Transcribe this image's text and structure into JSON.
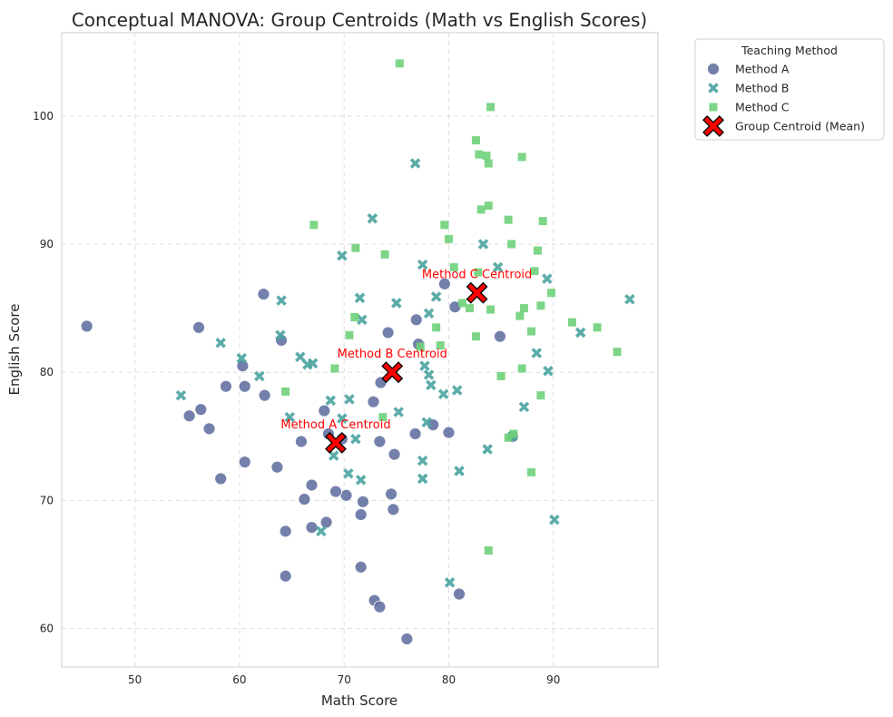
{
  "chart_data": {
    "type": "scatter",
    "title": "Conceptual MANOVA: Group Centroids (Math vs English Scores)",
    "xlabel": "Math Score",
    "ylabel": "English Score",
    "xlim": [
      43,
      100
    ],
    "ylim": [
      57,
      106.5
    ],
    "x_ticks": [
      50,
      60,
      70,
      80,
      90
    ],
    "y_ticks": [
      60,
      70,
      80,
      90,
      100
    ],
    "grid": true,
    "legend": {
      "title": "Teaching Method",
      "placement": "outside-top-right",
      "entries": [
        "Method A",
        "Method B",
        "Method C",
        "Group Centroid (Mean)"
      ]
    },
    "series": [
      {
        "name": "Method A",
        "marker": "circle",
        "color": "#5a6a9c",
        "points": [
          [
            45.4,
            83.6
          ],
          [
            56.1,
            83.5
          ],
          [
            62.3,
            86.1
          ],
          [
            64.0,
            82.5
          ],
          [
            60.3,
            80.5
          ],
          [
            58.7,
            78.9
          ],
          [
            60.5,
            78.9
          ],
          [
            62.4,
            78.2
          ],
          [
            56.3,
            77.1
          ],
          [
            55.2,
            76.6
          ],
          [
            57.1,
            75.6
          ],
          [
            58.2,
            71.7
          ],
          [
            60.5,
            73.0
          ],
          [
            63.6,
            72.6
          ],
          [
            65.9,
            74.6
          ],
          [
            68.1,
            77.0
          ],
          [
            68.5,
            75.2
          ],
          [
            69.8,
            74.8
          ],
          [
            73.5,
            79.2
          ],
          [
            74.2,
            83.1
          ],
          [
            72.8,
            77.7
          ],
          [
            73.4,
            74.6
          ],
          [
            74.8,
            73.6
          ],
          [
            76.8,
            75.2
          ],
          [
            77.1,
            82.2
          ],
          [
            76.9,
            84.1
          ],
          [
            79.6,
            86.9
          ],
          [
            80.6,
            85.1
          ],
          [
            78.5,
            75.9
          ],
          [
            80.0,
            75.3
          ],
          [
            84.9,
            82.8
          ],
          [
            86.1,
            75.0
          ],
          [
            66.9,
            71.2
          ],
          [
            70.2,
            70.4
          ],
          [
            69.2,
            70.7
          ],
          [
            71.8,
            69.9
          ],
          [
            74.5,
            70.5
          ],
          [
            74.7,
            69.3
          ],
          [
            71.6,
            68.9
          ],
          [
            68.3,
            68.3
          ],
          [
            66.2,
            70.1
          ],
          [
            66.9,
            67.9
          ],
          [
            64.4,
            67.6
          ],
          [
            64.4,
            64.1
          ],
          [
            71.6,
            64.8
          ],
          [
            72.9,
            62.2
          ],
          [
            73.4,
            61.7
          ],
          [
            81.0,
            62.7
          ],
          [
            76.0,
            59.2
          ]
        ]
      },
      {
        "name": "Method B",
        "marker": "x",
        "color": "#4aa3a0",
        "points": [
          [
            76.8,
            96.3
          ],
          [
            72.7,
            92.0
          ],
          [
            69.8,
            89.1
          ],
          [
            77.5,
            88.4
          ],
          [
            83.3,
            90.0
          ],
          [
            84.7,
            88.2
          ],
          [
            89.4,
            87.3
          ],
          [
            97.3,
            85.7
          ],
          [
            64.0,
            85.6
          ],
          [
            71.5,
            85.8
          ],
          [
            75.0,
            85.4
          ],
          [
            78.8,
            85.9
          ],
          [
            78.1,
            84.6
          ],
          [
            71.7,
            84.1
          ],
          [
            63.9,
            82.9
          ],
          [
            58.2,
            82.3
          ],
          [
            60.2,
            81.1
          ],
          [
            65.8,
            81.2
          ],
          [
            66.5,
            80.6
          ],
          [
            67.0,
            80.7
          ],
          [
            61.9,
            79.7
          ],
          [
            54.4,
            78.2
          ],
          [
            68.7,
            77.8
          ],
          [
            70.5,
            77.9
          ],
          [
            77.7,
            80.5
          ],
          [
            78.1,
            79.8
          ],
          [
            78.3,
            79.0
          ],
          [
            79.5,
            78.3
          ],
          [
            80.8,
            78.6
          ],
          [
            75.2,
            76.9
          ],
          [
            77.9,
            76.1
          ],
          [
            88.4,
            81.5
          ],
          [
            92.6,
            83.1
          ],
          [
            89.5,
            80.1
          ],
          [
            87.2,
            77.3
          ],
          [
            86.1,
            75.0
          ],
          [
            64.8,
            76.5
          ],
          [
            69.8,
            76.4
          ],
          [
            71.1,
            74.8
          ],
          [
            69.0,
            73.5
          ],
          [
            70.4,
            72.1
          ],
          [
            71.6,
            71.6
          ],
          [
            77.5,
            73.1
          ],
          [
            77.5,
            71.7
          ],
          [
            81.0,
            72.3
          ],
          [
            83.7,
            74.0
          ],
          [
            67.8,
            67.6
          ],
          [
            80.1,
            63.6
          ],
          [
            90.1,
            68.5
          ]
        ]
      },
      {
        "name": "Method C",
        "marker": "square",
        "color": "#6fd17a",
        "points": [
          [
            75.3,
            104.1
          ],
          [
            84.0,
            100.7
          ],
          [
            82.6,
            98.1
          ],
          [
            82.9,
            97.0
          ],
          [
            83.6,
            96.9
          ],
          [
            83.8,
            96.3
          ],
          [
            87.0,
            96.8
          ],
          [
            83.8,
            93.0
          ],
          [
            83.1,
            92.7
          ],
          [
            85.7,
            91.9
          ],
          [
            89.0,
            91.8
          ],
          [
            67.1,
            91.5
          ],
          [
            79.6,
            91.5
          ],
          [
            80.0,
            90.4
          ],
          [
            86.0,
            90.0
          ],
          [
            71.1,
            89.7
          ],
          [
            73.9,
            89.2
          ],
          [
            88.5,
            89.5
          ],
          [
            80.5,
            88.2
          ],
          [
            82.8,
            87.8
          ],
          [
            88.2,
            87.9
          ],
          [
            89.8,
            86.2
          ],
          [
            81.3,
            85.4
          ],
          [
            82.0,
            85.0
          ],
          [
            87.2,
            85.0
          ],
          [
            88.8,
            85.2
          ],
          [
            84.0,
            84.9
          ],
          [
            86.8,
            84.4
          ],
          [
            71.0,
            84.3
          ],
          [
            78.8,
            83.5
          ],
          [
            87.9,
            83.2
          ],
          [
            91.8,
            83.9
          ],
          [
            94.2,
            83.5
          ],
          [
            96.1,
            81.6
          ],
          [
            70.5,
            82.9
          ],
          [
            82.6,
            82.8
          ],
          [
            79.2,
            82.1
          ],
          [
            77.3,
            82.0
          ],
          [
            69.1,
            80.3
          ],
          [
            85.0,
            79.7
          ],
          [
            87.0,
            80.3
          ],
          [
            64.4,
            78.5
          ],
          [
            88.8,
            78.2
          ],
          [
            73.7,
            76.5
          ],
          [
            85.7,
            74.9
          ],
          [
            86.2,
            75.2
          ],
          [
            87.9,
            72.2
          ],
          [
            83.8,
            66.1
          ]
        ]
      }
    ],
    "centroids": {
      "name": "Group Centroid (Mean)",
      "marker": "X",
      "color": "#ff0000",
      "points": [
        {
          "label": "Method A Centroid",
          "x": 69.2,
          "y": 74.5
        },
        {
          "label": "Method B Centroid",
          "x": 74.6,
          "y": 80.0
        },
        {
          "label": "Method C Centroid",
          "x": 82.7,
          "y": 86.2
        }
      ]
    }
  }
}
